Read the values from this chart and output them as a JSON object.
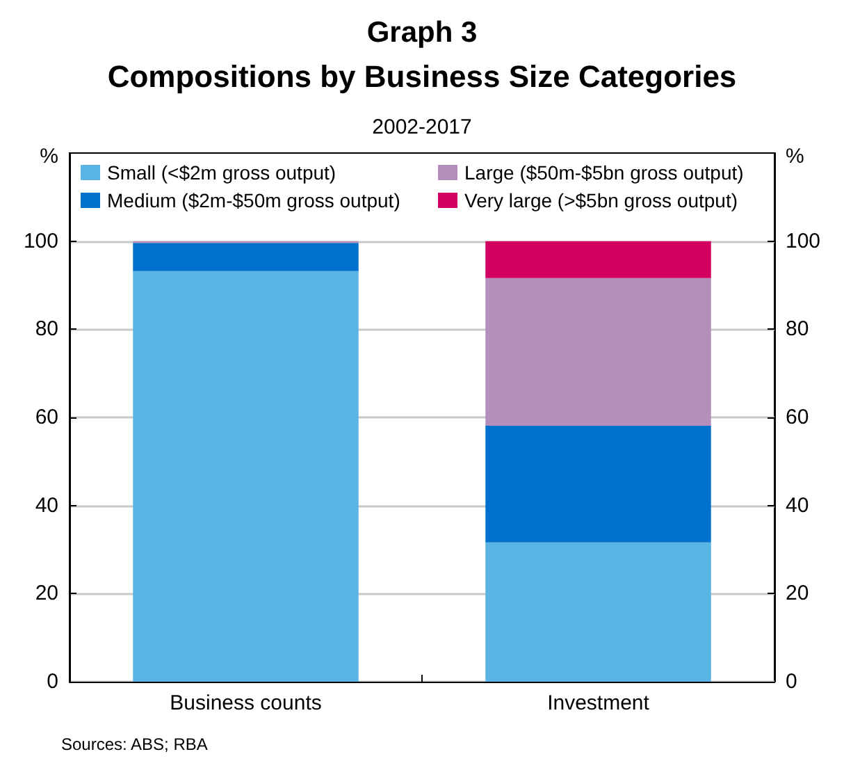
{
  "chart_data": {
    "type": "bar",
    "title": "Graph 3",
    "subtitle": "Compositions by Business Size Categories",
    "annotations": [
      "2002-2017",
      "Sources: ABS; RBA"
    ],
    "categories": [
      "Business counts",
      "Investment"
    ],
    "stacked": true,
    "series": [
      {
        "name": "Small (<$2m gross output)",
        "color": "#5ab4e4",
        "values": [
          93.2,
          31.6
        ]
      },
      {
        "name": "Medium ($2m-$50m gross output)",
        "color": "#0072ce",
        "values": [
          6.4,
          26.5
        ]
      },
      {
        "name": "Large ($50m-$5bn gross output)",
        "color": "#b48fbc",
        "values": [
          0.4,
          33.5
        ]
      },
      {
        "name": "Very large (>$5bn gross output)",
        "color": "#d20060",
        "values": [
          0,
          8.4
        ]
      }
    ],
    "ylabel": "%",
    "y2label": "%",
    "ylim": [
      0,
      120
    ],
    "yticks": [
      0,
      20,
      40,
      60,
      80,
      100
    ],
    "y2lim": [
      0,
      120
    ],
    "y2ticks": [
      0,
      20,
      40,
      60,
      80,
      100
    ],
    "grid": "y",
    "legend": "top"
  }
}
